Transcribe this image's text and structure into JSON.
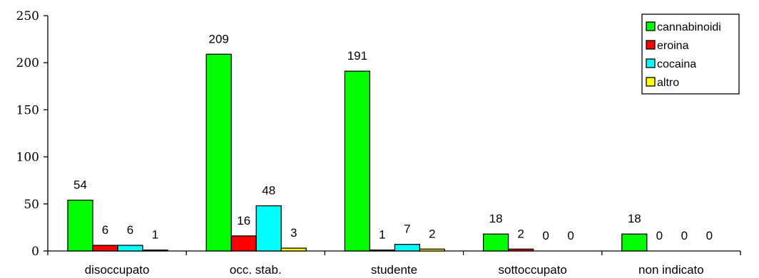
{
  "chart_data": {
    "type": "bar",
    "title": "",
    "xlabel": "",
    "ylabel": "",
    "ylim": [
      0,
      250
    ],
    "yticks": [
      0,
      50,
      100,
      150,
      200,
      250
    ],
    "categories": [
      "disoccupato",
      "occ. stab.",
      "studente",
      "sottoccupato",
      "non indicato"
    ],
    "series": [
      {
        "name": "cannabinoidi",
        "color": "#00ff00",
        "values": [
          54,
          209,
          191,
          18,
          18
        ]
      },
      {
        "name": "eroina",
        "color": "#ff0000",
        "values": [
          6,
          16,
          1,
          2,
          0
        ]
      },
      {
        "name": "cocaina",
        "color": "#00ffff",
        "values": [
          6,
          48,
          7,
          0,
          0
        ]
      },
      {
        "name": "altro",
        "color": "#ffff00",
        "values": [
          1,
          3,
          2,
          0,
          0
        ]
      }
    ],
    "grid": false,
    "legend_position": "top-right"
  }
}
